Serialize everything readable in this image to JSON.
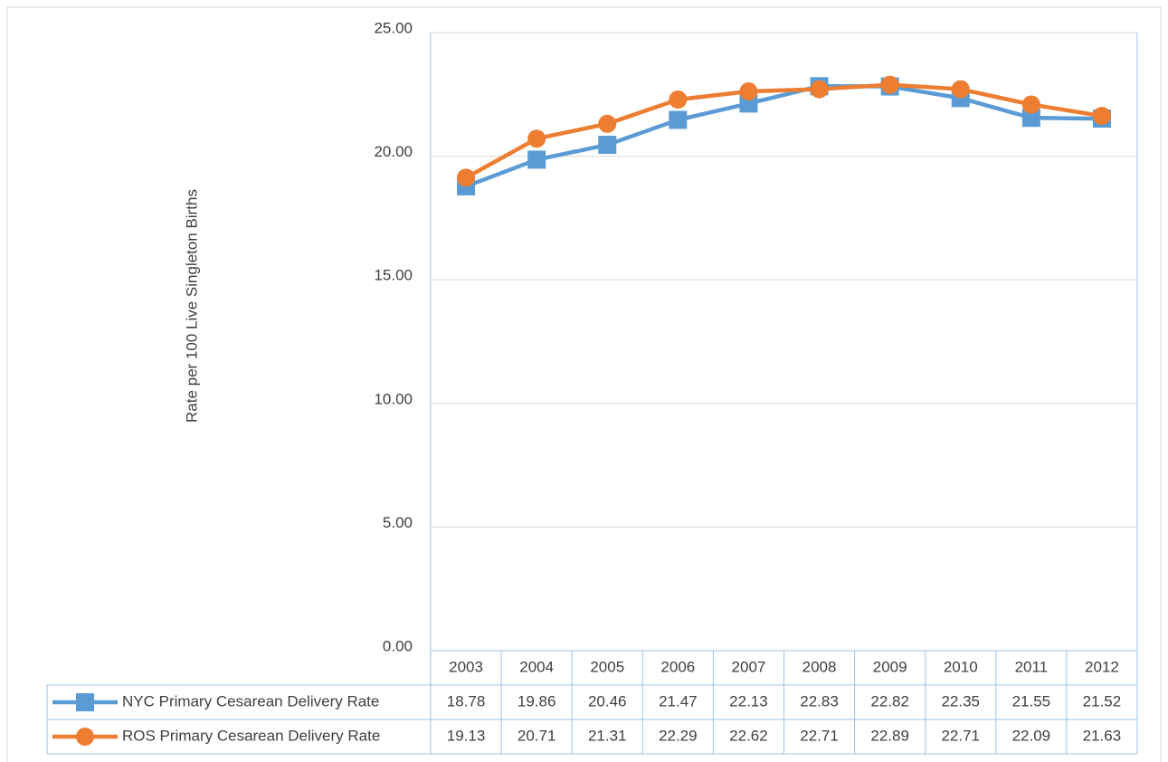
{
  "chart_data": {
    "type": "line",
    "y_label": "Rate per 100 Live Singleton Births",
    "categories": [
      "2003",
      "2004",
      "2005",
      "2006",
      "2007",
      "2008",
      "2009",
      "2010",
      "2011",
      "2012"
    ],
    "series": [
      {
        "name": "NYC Primary Cesarean Delivery Rate",
        "color": "#5b9bd5",
        "marker": "square",
        "values": [
          18.78,
          19.86,
          20.46,
          21.47,
          22.13,
          22.83,
          22.82,
          22.35,
          21.55,
          21.52
        ]
      },
      {
        "name": "ROS Primary Cesarean Delivery Rate",
        "color": "#ed7d31",
        "marker": "circle",
        "values": [
          19.13,
          20.71,
          21.31,
          22.29,
          22.62,
          22.71,
          22.89,
          22.71,
          22.09,
          21.63
        ]
      }
    ],
    "ylim": [
      0,
      25
    ],
    "yticks": [
      {
        "value": 0,
        "label": "0.00"
      },
      {
        "value": 5,
        "label": "5.00"
      },
      {
        "value": 10,
        "label": "10.00"
      },
      {
        "value": 15,
        "label": "15.00"
      },
      {
        "value": 20,
        "label": "20.00"
      },
      {
        "value": 25,
        "label": "25.00"
      }
    ],
    "grid": true
  }
}
